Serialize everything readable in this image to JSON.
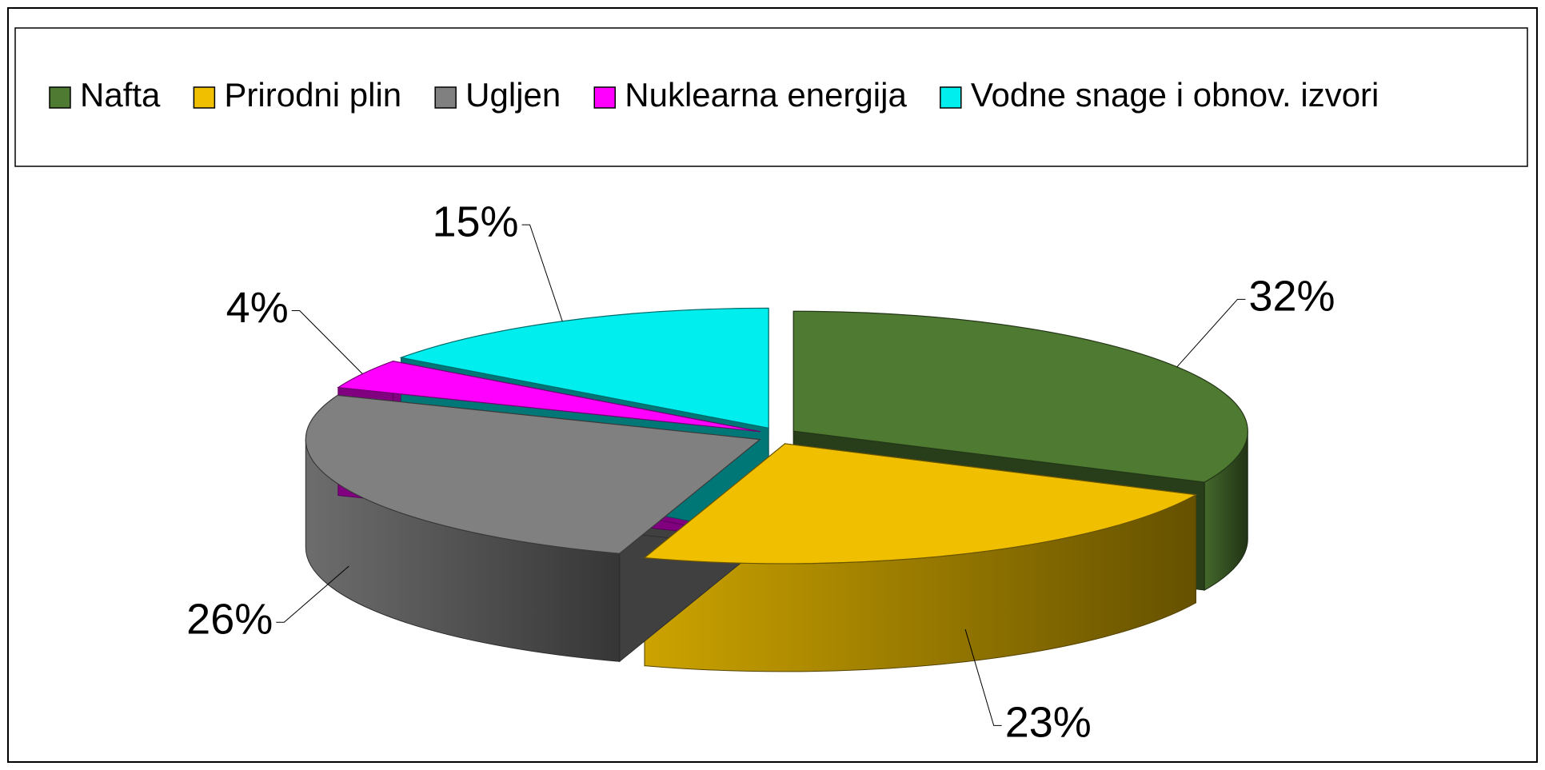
{
  "chart_data": {
    "type": "pie3d",
    "categories": [
      "Nafta",
      "Prirodni plin",
      "Ugljen",
      "Nuklearna energija",
      "Vodne snage i obnov. izvori"
    ],
    "values": [
      32,
      23,
      26,
      4,
      15
    ],
    "value_labels": [
      "32%",
      "23%",
      "26%",
      "4%",
      "15%"
    ],
    "colors": [
      "#4f7a32",
      "#f0c000",
      "#808080",
      "#ff00ff",
      "#00eeee"
    ],
    "legend": "top"
  }
}
